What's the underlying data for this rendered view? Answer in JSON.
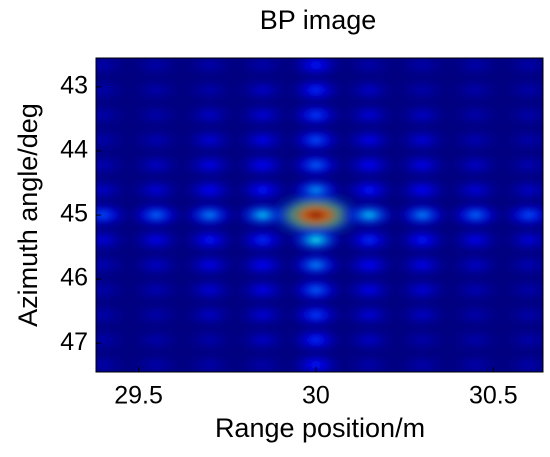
{
  "chart_data": {
    "type": "heatmap",
    "title": "BP image",
    "x_label": "Range position/m",
    "y_label": "Azimuth angle/deg",
    "x": [
      29.4,
      29.55,
      29.7,
      29.85,
      30,
      30.15,
      30.3,
      30.45,
      30.6
    ],
    "y": [
      42.66,
      43.05,
      43.44,
      43.83,
      44.22,
      44.61,
      45,
      45.39,
      45.78,
      46.17,
      46.56,
      46.95,
      47.34
    ],
    "z": [
      [
        0.05,
        0.05,
        0.05,
        0.05,
        0.16,
        0.05,
        0.05,
        0.05,
        0.05
      ],
      [
        0.05,
        0.05,
        0.05,
        0.08,
        0.18,
        0.08,
        0.05,
        0.05,
        0.05
      ],
      [
        0.05,
        0.05,
        0.08,
        0.1,
        0.2,
        0.1,
        0.08,
        0.05,
        0.05
      ],
      [
        0.05,
        0.06,
        0.1,
        0.12,
        0.22,
        0.12,
        0.1,
        0.06,
        0.05
      ],
      [
        0.06,
        0.08,
        0.12,
        0.14,
        0.24,
        0.14,
        0.12,
        0.08,
        0.06
      ],
      [
        0.08,
        0.1,
        0.14,
        0.16,
        0.3,
        0.16,
        0.14,
        0.1,
        0.08
      ],
      [
        0.22,
        0.25,
        0.28,
        0.35,
        1.0,
        0.35,
        0.28,
        0.25,
        0.22
      ],
      [
        0.1,
        0.12,
        0.16,
        0.18,
        0.4,
        0.18,
        0.16,
        0.12,
        0.1
      ],
      [
        0.06,
        0.08,
        0.12,
        0.14,
        0.28,
        0.14,
        0.12,
        0.08,
        0.06
      ],
      [
        0.05,
        0.06,
        0.1,
        0.12,
        0.24,
        0.12,
        0.1,
        0.06,
        0.05
      ],
      [
        0.05,
        0.05,
        0.08,
        0.1,
        0.2,
        0.1,
        0.08,
        0.05,
        0.05
      ],
      [
        0.05,
        0.05,
        0.05,
        0.08,
        0.18,
        0.08,
        0.05,
        0.05,
        0.05
      ],
      [
        0.05,
        0.05,
        0.05,
        0.05,
        0.16,
        0.05,
        0.05,
        0.05,
        0.05
      ]
    ],
    "colormap": "jet",
    "clim": [
      0,
      1
    ],
    "xlim": [
      29.38,
      30.64
    ],
    "ylim": [
      42.55,
      47.45
    ],
    "y_reversed": true,
    "xticks": [
      29.5,
      30,
      30.5
    ],
    "yticks": [
      43,
      44,
      45,
      46,
      47
    ]
  }
}
